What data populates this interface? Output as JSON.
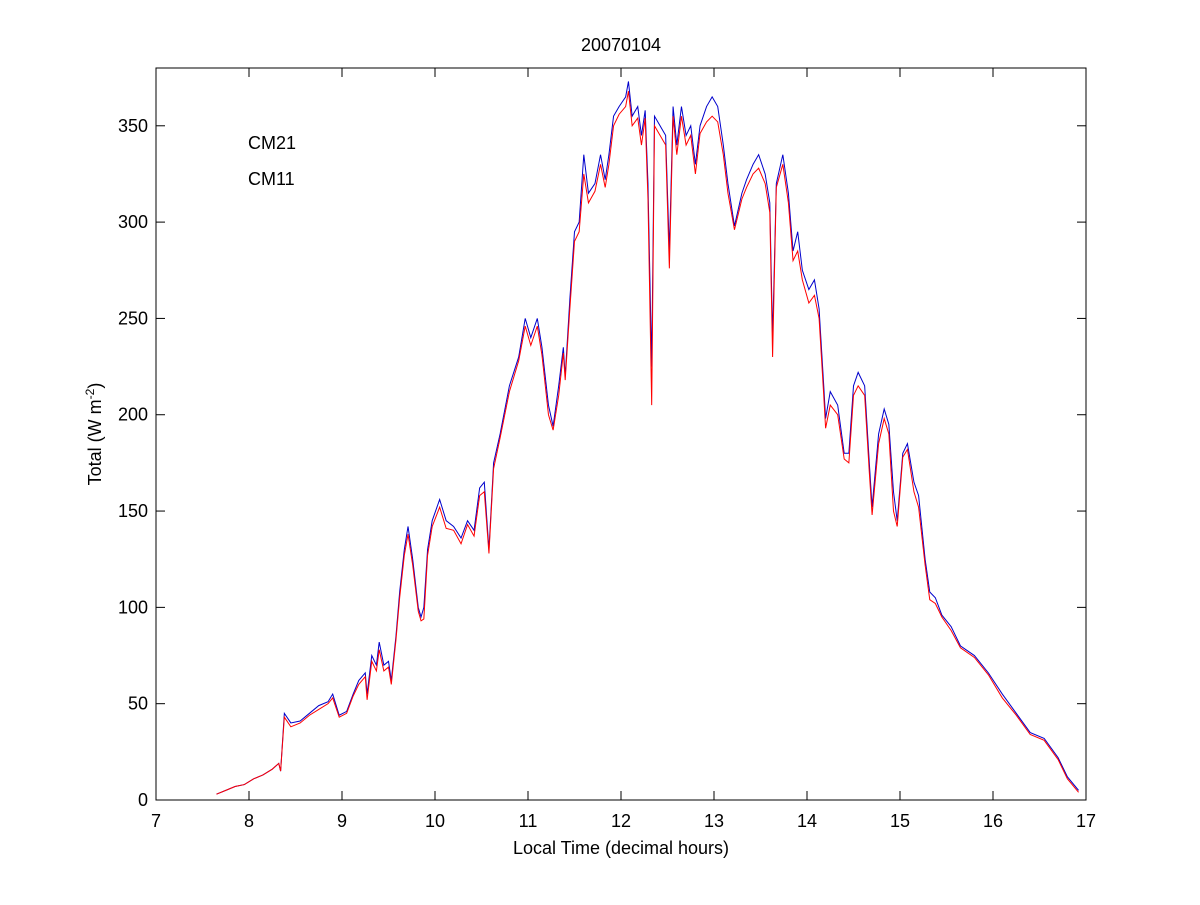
{
  "chart_data": {
    "type": "line",
    "title": "20070104",
    "x_label": "Local Time (decimal hours)",
    "y_label": [
      "Total (W m",
      "-2",
      ")"
    ],
    "xlim": [
      7,
      17
    ],
    "xticks": [
      7,
      8,
      9,
      10,
      11,
      12,
      13,
      14,
      15,
      16,
      17
    ],
    "ylim": [
      0,
      380
    ],
    "yticks": [
      0,
      50,
      100,
      150,
      200,
      250,
      300,
      350
    ],
    "legend": "northwest",
    "box": true,
    "x": [
      7.65,
      7.75,
      7.85,
      7.95,
      8.05,
      8.15,
      8.25,
      8.32,
      8.34,
      8.38,
      8.45,
      8.55,
      8.65,
      8.75,
      8.85,
      8.9,
      8.97,
      9.05,
      9.12,
      9.18,
      9.25,
      9.27,
      9.32,
      9.37,
      9.4,
      9.45,
      9.5,
      9.53,
      9.58,
      9.62,
      9.67,
      9.71,
      9.76,
      9.82,
      9.85,
      9.88,
      9.92,
      9.97,
      10.05,
      10.12,
      10.2,
      10.28,
      10.35,
      10.42,
      10.48,
      10.53,
      10.58,
      10.63,
      10.7,
      10.8,
      10.9,
      10.97,
      11.03,
      11.1,
      11.15,
      11.22,
      11.27,
      11.33,
      11.38,
      11.4,
      11.45,
      11.5,
      11.55,
      11.6,
      11.65,
      11.72,
      11.78,
      11.83,
      11.87,
      11.92,
      11.98,
      12.05,
      12.08,
      12.12,
      12.18,
      12.22,
      12.26,
      12.29,
      12.33,
      12.36,
      12.42,
      12.48,
      12.52,
      12.56,
      12.6,
      12.65,
      12.7,
      12.75,
      12.8,
      12.85,
      12.92,
      12.98,
      13.04,
      13.1,
      13.15,
      13.22,
      13.3,
      13.35,
      13.42,
      13.48,
      13.55,
      13.6,
      13.63,
      13.67,
      13.74,
      13.8,
      13.85,
      13.9,
      13.95,
      14.02,
      14.08,
      14.13,
      14.18,
      14.2,
      14.25,
      14.33,
      14.4,
      14.45,
      14.5,
      14.55,
      14.62,
      14.67,
      14.7,
      14.77,
      14.83,
      14.88,
      14.93,
      14.97,
      15.03,
      15.08,
      15.15,
      15.2,
      15.27,
      15.32,
      15.38,
      15.45,
      15.55,
      15.65,
      15.8,
      15.95,
      16.1,
      16.25,
      16.4,
      16.55,
      16.7,
      16.8,
      16.92
    ],
    "series": [
      {
        "name": "CM21",
        "color": "#0000cc",
        "values": [
          3,
          5,
          7,
          8,
          11,
          13,
          16,
          19,
          15,
          45,
          40,
          41,
          45,
          49,
          51,
          55,
          44,
          46,
          55,
          62,
          66,
          55,
          75,
          70,
          82,
          70,
          72,
          62,
          85,
          108,
          130,
          142,
          125,
          100,
          95,
          100,
          130,
          145,
          156,
          145,
          142,
          136,
          145,
          140,
          162,
          165,
          130,
          175,
          190,
          215,
          230,
          250,
          240,
          250,
          235,
          205,
          194,
          215,
          235,
          220,
          260,
          295,
          300,
          335,
          315,
          320,
          335,
          322,
          335,
          355,
          360,
          365,
          373,
          355,
          360,
          345,
          358,
          320,
          225,
          355,
          350,
          345,
          285,
          360,
          340,
          360,
          345,
          350,
          330,
          350,
          360,
          365,
          360,
          340,
          320,
          298,
          315,
          322,
          330,
          335,
          325,
          310,
          240,
          320,
          335,
          315,
          285,
          295,
          275,
          265,
          270,
          255,
          215,
          198,
          212,
          205,
          180,
          180,
          215,
          222,
          215,
          175,
          152,
          190,
          203,
          195,
          160,
          145,
          180,
          185,
          165,
          158,
          125,
          108,
          105,
          96,
          90,
          80,
          75,
          66,
          55,
          45,
          35,
          32,
          22,
          12,
          5
        ]
      },
      {
        "name": "CM11",
        "color": "#ff0000",
        "values": [
          3,
          5,
          7,
          8,
          11,
          13,
          16,
          19,
          15,
          43,
          38,
          40,
          44,
          47,
          50,
          53,
          43,
          45,
          54,
          60,
          64,
          52,
          72,
          67,
          78,
          67,
          69,
          60,
          83,
          105,
          127,
          138,
          122,
          98,
          93,
          94,
          127,
          142,
          152,
          141,
          140,
          133,
          143,
          137,
          158,
          160,
          128,
          172,
          188,
          212,
          228,
          246,
          236,
          246,
          231,
          200,
          192,
          210,
          232,
          218,
          255,
          290,
          295,
          325,
          310,
          316,
          330,
          318,
          330,
          350,
          356,
          360,
          368,
          350,
          354,
          340,
          354,
          312,
          205,
          350,
          345,
          340,
          276,
          355,
          335,
          355,
          340,
          345,
          325,
          346,
          352,
          355,
          352,
          335,
          315,
          296,
          312,
          318,
          325,
          328,
          320,
          305,
          230,
          318,
          330,
          310,
          280,
          285,
          270,
          258,
          262,
          250,
          210,
          193,
          205,
          200,
          177,
          175,
          210,
          215,
          210,
          170,
          148,
          185,
          198,
          190,
          150,
          142,
          178,
          182,
          160,
          152,
          122,
          104,
          102,
          95,
          88,
          79,
          74,
          65,
          53,
          44,
          34,
          31,
          21,
          11,
          4
        ]
      }
    ]
  }
}
